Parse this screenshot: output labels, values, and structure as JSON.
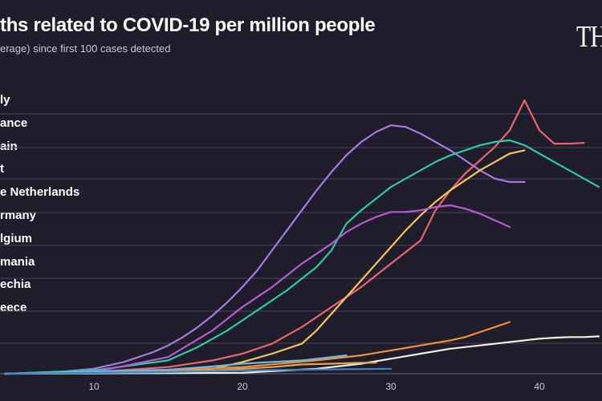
{
  "header": {
    "title": "ths related to COVID-19 per million people",
    "subtitle": "erage) since first 100 cases detected",
    "logo": "THE"
  },
  "legend": [
    "ly",
    "ance",
    "ain",
    "t",
    "e Netherlands",
    "rmany",
    "lgium",
    "mania",
    "echia",
    "eece"
  ],
  "colors": {
    "background": "#1f1c2c",
    "gridline": "#4a4758",
    "tick_text": "#c9c7d3"
  },
  "chart_data": {
    "type": "line",
    "title": "ths related to COVID-19 per million people",
    "subtitle": "erage) since first 100 cases detected",
    "xlim": [
      4,
      44
    ],
    "ylim": [
      0,
      8.2
    ],
    "x_ticks": [
      "10",
      "20",
      "30",
      "40"
    ],
    "grid": "horizontal",
    "series": [
      {
        "color": "#a87ae0",
        "x": [
          4,
          6,
          8,
          10,
          12,
          13,
          14,
          15,
          16,
          17,
          18,
          19,
          20,
          21,
          22,
          23,
          24,
          25,
          26,
          27,
          28,
          29,
          30,
          31,
          32,
          33,
          34,
          35,
          36,
          37,
          38,
          39
        ],
        "y": [
          0,
          0.03,
          0.07,
          0.15,
          0.35,
          0.5,
          0.65,
          0.85,
          1.1,
          1.4,
          1.75,
          2.15,
          2.6,
          3.1,
          3.7,
          4.3,
          4.9,
          5.5,
          6.05,
          6.55,
          6.95,
          7.25,
          7.45,
          7.4,
          7.2,
          6.95,
          6.7,
          6.4,
          6.1,
          5.85,
          5.75,
          5.75
        ]
      },
      {
        "color": "#e8656e",
        "x": [
          4,
          10,
          15,
          18,
          20,
          22,
          24,
          26,
          28,
          30,
          31,
          32,
          33,
          34,
          35,
          36,
          37,
          38,
          39,
          40,
          41,
          42,
          43
        ],
        "y": [
          0,
          0.05,
          0.2,
          0.4,
          0.6,
          0.9,
          1.4,
          2.0,
          2.6,
          3.3,
          3.65,
          4.0,
          4.9,
          5.5,
          6.0,
          6.4,
          6.8,
          7.3,
          8.2,
          7.3,
          6.9,
          6.9,
          6.92
        ]
      },
      {
        "color": "#2fc9a7",
        "x": [
          4,
          10,
          15,
          17,
          19,
          21,
          23,
          25,
          26,
          27,
          28,
          29,
          30,
          31,
          32,
          33,
          34,
          35,
          36,
          37,
          38,
          39,
          40,
          41,
          42,
          43,
          44
        ],
        "y": [
          0,
          0.1,
          0.4,
          0.8,
          1.3,
          1.9,
          2.5,
          3.2,
          3.7,
          4.5,
          4.9,
          5.25,
          5.6,
          5.85,
          6.1,
          6.35,
          6.55,
          6.7,
          6.85,
          6.95,
          7.0,
          6.85,
          6.6,
          6.35,
          6.1,
          5.85,
          5.6
        ]
      },
      {
        "color": "#f2c658",
        "x": [
          4,
          10,
          18,
          20,
          22,
          24,
          25,
          26,
          27,
          28,
          29,
          30,
          31,
          32,
          33,
          34,
          35,
          36,
          37,
          38,
          39
        ],
        "y": [
          0,
          0.02,
          0.15,
          0.35,
          0.6,
          0.9,
          1.3,
          1.8,
          2.3,
          2.8,
          3.3,
          3.8,
          4.3,
          4.75,
          5.15,
          5.5,
          5.8,
          6.1,
          6.35,
          6.6,
          6.7
        ]
      },
      {
        "color": "#b65bcf",
        "x": [
          4,
          10,
          15,
          18,
          20,
          22,
          24,
          25,
          26,
          27,
          28,
          29,
          30,
          31,
          32,
          33,
          34,
          35,
          36,
          37,
          38
        ],
        "y": [
          0,
          0.05,
          0.5,
          1.3,
          2.0,
          2.6,
          3.3,
          3.6,
          3.9,
          4.25,
          4.5,
          4.7,
          4.85,
          4.85,
          4.9,
          5.0,
          5.05,
          4.95,
          4.8,
          4.6,
          4.4
        ]
      },
      {
        "color": "#f28f3b",
        "x": [
          4,
          15,
          20,
          25,
          28,
          30,
          32,
          34,
          35,
          36,
          37,
          38
        ],
        "y": [
          0,
          0.1,
          0.2,
          0.4,
          0.55,
          0.7,
          0.85,
          1.0,
          1.1,
          1.25,
          1.4,
          1.55
        ]
      },
      {
        "color": "#efeee0",
        "x": [
          4,
          20,
          25,
          28,
          30,
          32,
          34,
          36,
          38,
          40,
          41,
          42,
          43,
          44
        ],
        "y": [
          0,
          0.03,
          0.15,
          0.3,
          0.45,
          0.6,
          0.75,
          0.85,
          0.95,
          1.05,
          1.08,
          1.1,
          1.1,
          1.12
        ]
      },
      {
        "color": "#6bb8e0",
        "x": [
          4,
          15,
          18,
          20,
          22,
          24,
          25,
          26,
          27
        ],
        "y": [
          0,
          0.12,
          0.22,
          0.3,
          0.35,
          0.4,
          0.45,
          0.5,
          0.55
        ]
      },
      {
        "color": "#e2a64c",
        "x": [
          4,
          15,
          18,
          20,
          22,
          24,
          26,
          28,
          29
        ],
        "y": [
          0,
          0.05,
          0.1,
          0.15,
          0.2,
          0.28,
          0.3,
          0.33,
          0.33
        ]
      },
      {
        "color": "#3f86c8",
        "x": [
          4,
          15,
          20,
          24,
          28,
          30
        ],
        "y": [
          0,
          0.05,
          0.1,
          0.12,
          0.14,
          0.15
        ]
      }
    ]
  }
}
